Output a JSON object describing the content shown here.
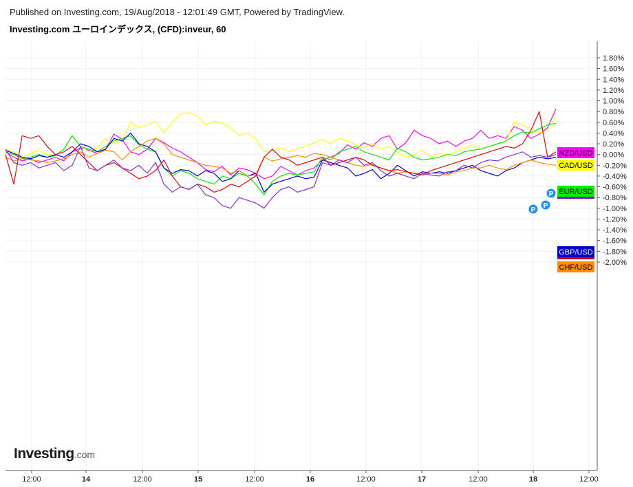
{
  "header": {
    "published": "Published on Investing.com, 19/Aug/2018 - 12:01:49 GMT, Powered by TradingView.",
    "title": "Investing.com ユーロインデックス, (CFD):inveur, 60"
  },
  "logo": {
    "main": "Investing",
    "suffix": ".com"
  },
  "colors": {
    "NZD/USD": "#ff00ff",
    "CAD/USD": "#ffff00",
    "EUR/USD": "#00ee00",
    "GBP/USD": "#0000cc",
    "CHF/USD": "#ff8c00",
    "red_series": "#ee0000",
    "purple_series": "#8a2be2"
  },
  "chart_data": {
    "type": "line",
    "y_unit": "%",
    "ylim": [
      -2.0,
      1.8
    ],
    "y_ticks": [
      "1.80%",
      "1.60%",
      "1.40%",
      "1.20%",
      "1.00%",
      "0.80%",
      "0.60%",
      "0.40%",
      "0.20%",
      "0.00%",
      "-0.20%",
      "-0.40%",
      "-0.60%",
      "-0.80%",
      "-1.00%",
      "-1.20%",
      "-1.40%",
      "-1.60%",
      "-1.80%",
      "-2.00%"
    ],
    "x_ticks": [
      "12:00",
      "14",
      "12:00",
      "15",
      "12:00",
      "16",
      "12:00",
      "17",
      "12:00",
      "18",
      "12:00"
    ],
    "grid": true,
    "legend_placement": "right-axis labels",
    "markers": [
      "P",
      "P",
      "P"
    ],
    "series": [
      {
        "name": "NZD/USD",
        "label": "NZD/USD",
        "color": "#ff00ff",
        "values": [
          0.05,
          -0.05,
          -0.12,
          -0.08,
          -0.15,
          -0.1,
          -0.05,
          -0.12,
          0.05,
          0.12,
          0.08,
          0.02,
          0.1,
          0.38,
          0.28,
          0.05,
          0.0,
          0.1,
          0.3,
          0.22,
          0.12,
          0.05,
          -0.05,
          -0.15,
          -0.28,
          -0.32,
          -0.22,
          -0.38,
          -0.25,
          -0.28,
          -0.35,
          -0.45,
          -0.4,
          -0.22,
          -0.3,
          -0.38,
          -0.3,
          -0.25,
          -0.1,
          -0.05,
          0.02,
          0.18,
          0.1,
          0.22,
          0.15,
          0.3,
          0.35,
          0.1,
          0.22,
          0.45,
          0.35,
          0.3,
          0.2,
          0.25,
          0.15,
          0.25,
          0.3,
          0.45,
          0.3,
          0.35,
          0.3,
          0.52,
          0.45,
          0.3,
          0.38,
          0.5,
          0.85
        ]
      },
      {
        "name": "CAD/USD",
        "label": "CAD/USD",
        "color": "#ffff00",
        "values": [
          0.1,
          0.05,
          -0.05,
          0.02,
          0.08,
          0.0,
          -0.02,
          0.1,
          0.35,
          0.15,
          0.05,
          0.12,
          0.3,
          0.2,
          0.25,
          0.6,
          0.5,
          0.55,
          0.62,
          0.4,
          0.6,
          0.75,
          0.78,
          0.72,
          0.55,
          0.62,
          0.58,
          0.5,
          0.35,
          0.4,
          0.3,
          0.05,
          0.08,
          0.12,
          0.05,
          0.1,
          0.15,
          0.22,
          0.28,
          0.2,
          0.3,
          0.25,
          0.18,
          0.12,
          0.2,
          0.1,
          0.15,
          0.05,
          -0.05,
          0.0,
          0.08,
          -0.05,
          0.02,
          0.0,
          0.05,
          0.12,
          0.18,
          0.1,
          0.15,
          0.2,
          0.25,
          0.6,
          0.55,
          0.48,
          0.4,
          0.45,
          0.7
        ]
      },
      {
        "name": "EUR/USD",
        "label": "EUR/USD",
        "color": "#00ee00",
        "values": [
          0.05,
          0.0,
          -0.08,
          -0.05,
          0.0,
          -0.05,
          -0.02,
          0.1,
          0.35,
          0.15,
          0.1,
          0.05,
          0.15,
          0.25,
          0.3,
          0.35,
          0.18,
          0.1,
          0.05,
          -0.25,
          -0.4,
          -0.3,
          -0.35,
          -0.45,
          -0.5,
          -0.55,
          -0.4,
          -0.45,
          -0.35,
          -0.4,
          -0.55,
          -0.75,
          -0.5,
          -0.4,
          -0.35,
          -0.38,
          -0.35,
          -0.32,
          -0.05,
          -0.1,
          0.05,
          0.1,
          0.15,
          0.05,
          0.0,
          -0.05,
          -0.1,
          0.12,
          0.05,
          -0.05,
          -0.1,
          -0.08,
          -0.05,
          0.0,
          -0.02,
          0.05,
          0.08,
          0.1,
          0.15,
          0.2,
          0.25,
          0.35,
          0.42,
          0.4,
          0.48,
          0.55,
          0.58
        ]
      },
      {
        "name": "GBP/USD",
        "label": "GBP/USD",
        "color": "#0000cc",
        "values": [
          0.08,
          0.02,
          -0.05,
          -0.08,
          -0.02,
          -0.05,
          0.0,
          -0.05,
          0.05,
          0.2,
          0.15,
          0.05,
          0.1,
          0.3,
          0.25,
          0.4,
          0.2,
          0.15,
          0.05,
          -0.25,
          -0.35,
          -0.28,
          -0.3,
          -0.4,
          -0.3,
          -0.35,
          -0.5,
          -0.45,
          -0.3,
          -0.4,
          -0.35,
          -0.7,
          -0.55,
          -0.5,
          -0.45,
          -0.4,
          -0.45,
          -0.42,
          -0.1,
          -0.15,
          -0.2,
          -0.25,
          -0.4,
          -0.35,
          -0.28,
          -0.45,
          -0.35,
          -0.2,
          -0.3,
          -0.4,
          -0.32,
          -0.35,
          -0.32,
          -0.35,
          -0.3,
          -0.25,
          -0.2,
          -0.3,
          -0.35,
          -0.4,
          -0.3,
          -0.25,
          -0.15,
          -0.1,
          -0.05,
          -0.08,
          -0.05
        ]
      },
      {
        "name": "CHF/USD",
        "label": "CHF/USD",
        "color": "#ff8c00",
        "values": [
          -0.05,
          -0.12,
          -0.08,
          -0.1,
          -0.12,
          -0.15,
          -0.12,
          -0.08,
          0.0,
          0.05,
          -0.05,
          0.02,
          0.08,
          0.05,
          -0.1,
          0.05,
          0.15,
          0.25,
          0.3,
          0.2,
          0.0,
          -0.05,
          -0.1,
          -0.15,
          -0.2,
          -0.22,
          -0.25,
          -0.35,
          -0.3,
          -0.4,
          -0.38,
          -0.05,
          -0.12,
          -0.08,
          -0.05,
          -0.02,
          -0.05,
          0.02,
          0.0,
          -0.05,
          -0.1,
          -0.15,
          -0.2,
          -0.22,
          -0.18,
          -0.25,
          -0.3,
          -0.35,
          -0.32,
          -0.35,
          -0.38,
          -0.35,
          -0.35,
          -0.38,
          -0.32,
          -0.3,
          -0.25,
          -0.25,
          -0.2,
          -0.25,
          -0.28,
          -0.2,
          -0.15,
          -0.1,
          -0.15,
          -0.18,
          -0.2
        ]
      },
      {
        "name": "",
        "label": "",
        "color": "#ee0000",
        "values": [
          0.0,
          -0.55,
          0.35,
          0.3,
          0.35,
          0.15,
          0.0,
          0.05,
          0.15,
          0.0,
          -0.15,
          -0.3,
          -0.2,
          -0.15,
          -0.25,
          -0.35,
          -0.45,
          -0.4,
          -0.3,
          -0.1,
          -0.4,
          -0.6,
          -0.65,
          -0.55,
          -0.6,
          -0.7,
          -0.65,
          -0.55,
          -0.6,
          -0.5,
          -0.4,
          -0.05,
          0.1,
          -0.05,
          -0.1,
          -0.2,
          -0.15,
          -0.1,
          -0.05,
          -0.2,
          -0.15,
          -0.1,
          -0.05,
          -0.1,
          -0.2,
          -0.25,
          -0.3,
          -0.28,
          -0.32,
          -0.35,
          -0.38,
          -0.3,
          -0.25,
          -0.2,
          -0.15,
          -0.1,
          -0.05,
          0.0,
          0.05,
          0.1,
          0.15,
          0.12,
          0.2,
          0.45,
          0.8,
          -0.05,
          0.05
        ]
      },
      {
        "name": "",
        "label": "",
        "color": "#8a2be2",
        "values": [
          0.1,
          -0.15,
          -0.2,
          -0.15,
          -0.25,
          -0.2,
          -0.15,
          -0.3,
          -0.2,
          0.15,
          -0.25,
          -0.3,
          -0.2,
          -0.1,
          -0.25,
          -0.3,
          -0.2,
          -0.35,
          -0.15,
          -0.55,
          -0.7,
          -0.6,
          -0.65,
          -0.55,
          -0.75,
          -0.8,
          -0.95,
          -1.0,
          -0.8,
          -0.85,
          -0.9,
          -1.0,
          -0.8,
          -0.65,
          -0.6,
          -0.7,
          -0.65,
          -0.6,
          -0.15,
          -0.2,
          -0.1,
          -0.15,
          -0.05,
          -0.2,
          -0.15,
          -0.3,
          -0.4,
          -0.35,
          -0.4,
          -0.45,
          -0.35,
          -0.38,
          -0.4,
          -0.32,
          -0.3,
          -0.2,
          -0.25,
          -0.15,
          -0.1,
          -0.12,
          -0.05,
          0.0,
          0.05,
          -0.05,
          -0.02,
          -0.05,
          0.0
        ]
      }
    ]
  }
}
